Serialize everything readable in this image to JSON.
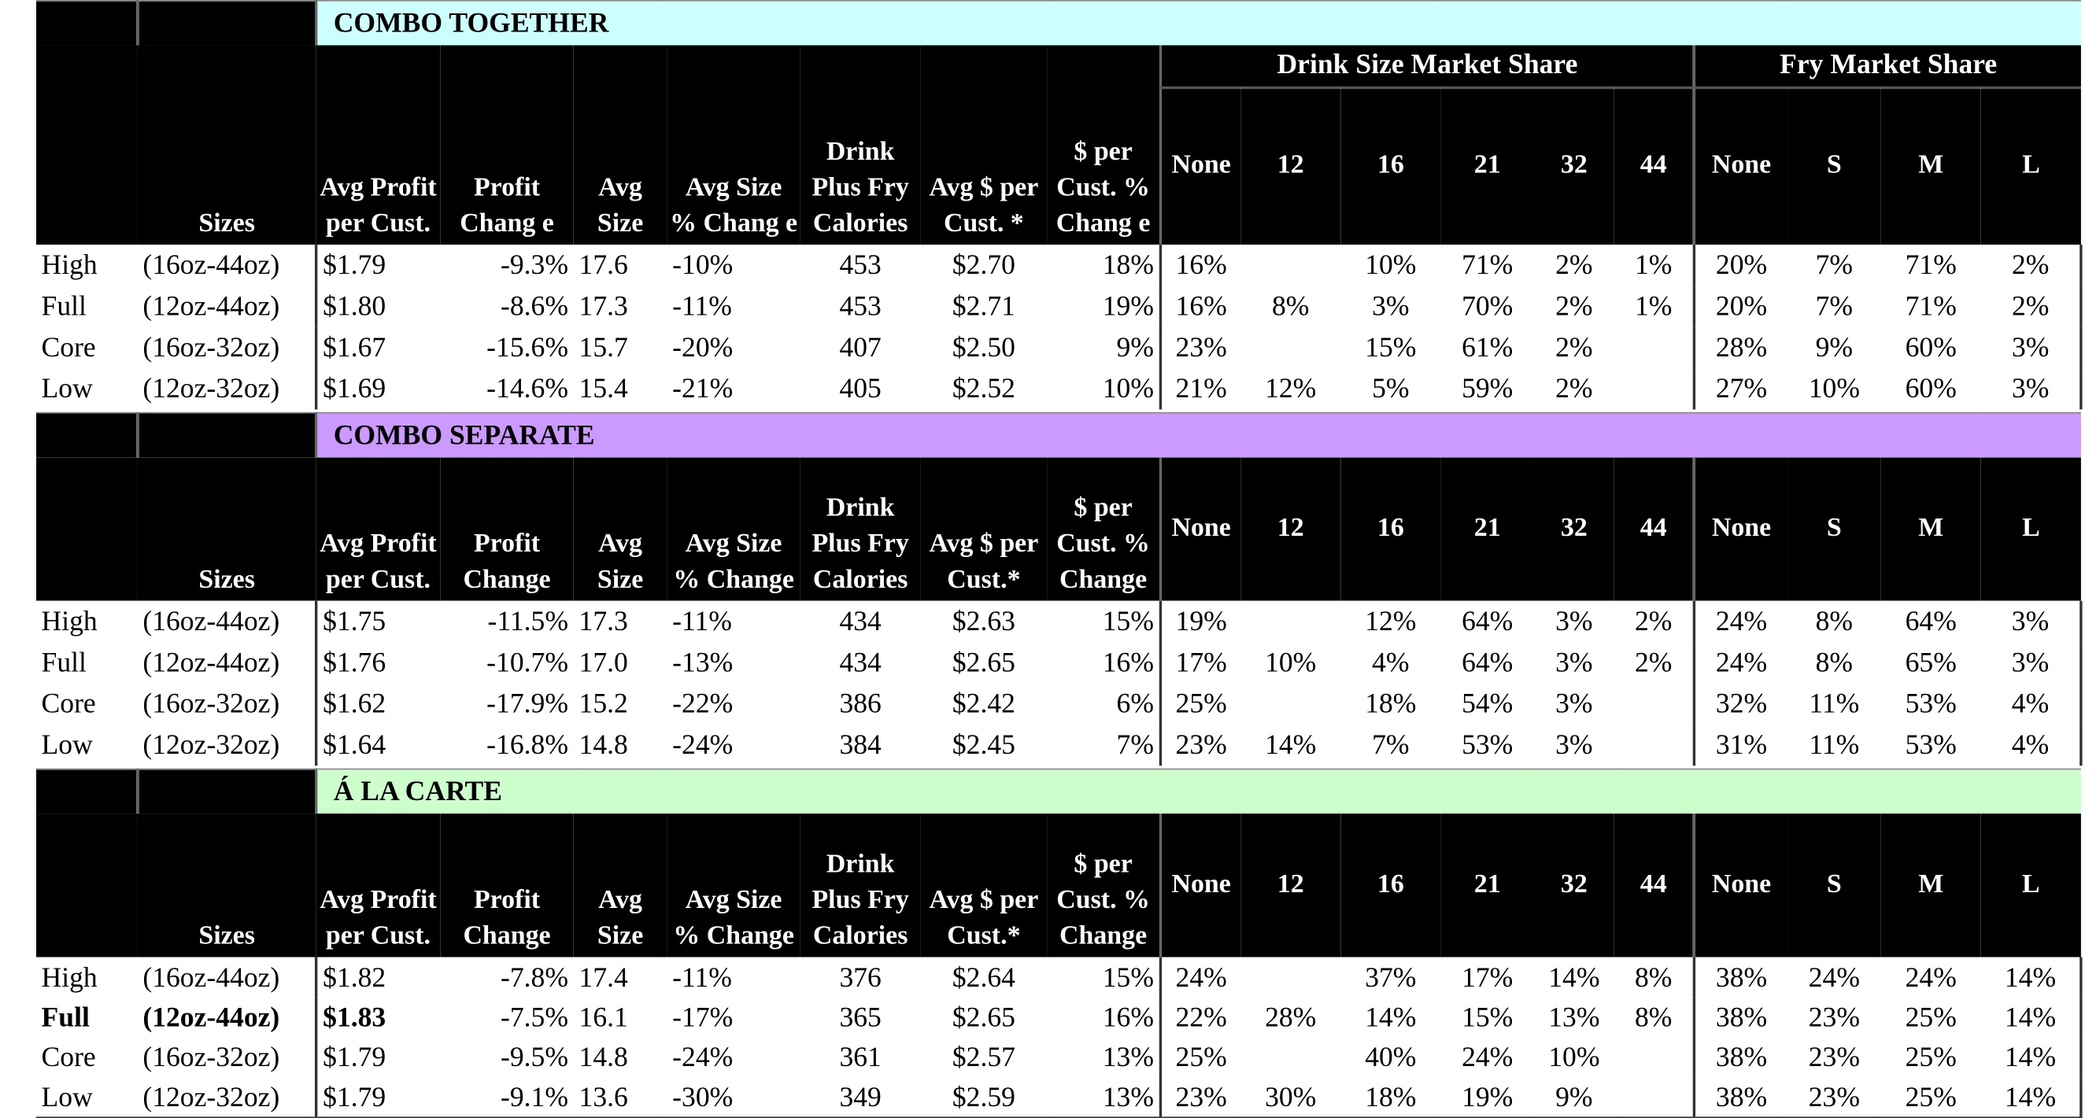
{
  "sections": [
    {
      "title": "COMBO TOGETHER",
      "color": "#ccffff",
      "header": {
        "sizes": "Sizes",
        "columns": [
          "Avg Profit per Cust.",
          "Profit Chang e",
          "Avg Size",
          "Avg Size % Chang e",
          "Drink Plus Fry Calories",
          "Avg $ per Cust. *",
          "$ per Cust. % Chang e"
        ],
        "drink_group": "Drink Size Market Share",
        "fry_group": "Fry Market Share",
        "drink_sizes": [
          "None",
          "12",
          "16",
          "21",
          "32",
          "44"
        ],
        "fry_sizes": [
          "None",
          "S",
          "M",
          "L"
        ]
      },
      "rows": [
        [
          "High",
          "(16oz-44oz)",
          "$1.79",
          "-9.3%",
          "17.6",
          "-10%",
          "453",
          "$2.70",
          "18%",
          "16%",
          null,
          "10%",
          "71%",
          "2%",
          "1%",
          "20%",
          "7%",
          "71%",
          "2%"
        ],
        [
          "Full",
          "(12oz-44oz)",
          "$1.80",
          "-8.6%",
          "17.3",
          "-11%",
          "453",
          "$2.71",
          "19%",
          "16%",
          "8%",
          "3%",
          "70%",
          "2%",
          "1%",
          "20%",
          "7%",
          "71%",
          "2%"
        ],
        [
          "Core",
          "(16oz-32oz)",
          "$1.67",
          "-15.6%",
          "15.7",
          "-20%",
          "407",
          "$2.50",
          "9%",
          "23%",
          null,
          "15%",
          "61%",
          "2%",
          null,
          "28%",
          "9%",
          "60%",
          "3%"
        ],
        [
          "Low",
          "(12oz-32oz)",
          "$1.69",
          "-14.6%",
          "15.4",
          "-21%",
          "405",
          "$2.52",
          "10%",
          "21%",
          "12%",
          "5%",
          "59%",
          "2%",
          null,
          "27%",
          "10%",
          "60%",
          "3%"
        ]
      ]
    },
    {
      "title": "COMBO SEPARATE",
      "color": "#cc99ff",
      "header": {
        "sizes": "Sizes",
        "columns": [
          "Avg Profit per Cust.",
          "Profit Change",
          "Avg Size",
          "Avg Size % Change",
          "Drink Plus Fry Calories",
          "Avg $ per Cust.*",
          "$ per Cust. % Change"
        ],
        "drink_sizes": [
          "None",
          "12",
          "16",
          "21",
          "32",
          "44"
        ],
        "fry_sizes": [
          "None",
          "S",
          "M",
          "L"
        ]
      },
      "rows": [
        [
          "High",
          "(16oz-44oz)",
          "$1.75",
          "-11.5%",
          "17.3",
          "-11%",
          "434",
          "$2.63",
          "15%",
          "19%",
          null,
          "12%",
          "64%",
          "3%",
          "2%",
          "24%",
          "8%",
          "64%",
          "3%"
        ],
        [
          "Full",
          "(12oz-44oz)",
          "$1.76",
          "-10.7%",
          "17.0",
          "-13%",
          "434",
          "$2.65",
          "16%",
          "17%",
          "10%",
          "4%",
          "64%",
          "3%",
          "2%",
          "24%",
          "8%",
          "65%",
          "3%"
        ],
        [
          "Core",
          "(16oz-32oz)",
          "$1.62",
          "-17.9%",
          "15.2",
          "-22%",
          "386",
          "$2.42",
          "6%",
          "25%",
          null,
          "18%",
          "54%",
          "3%",
          null,
          "32%",
          "11%",
          "53%",
          "4%"
        ],
        [
          "Low",
          "(12oz-32oz)",
          "$1.64",
          "-16.8%",
          "14.8",
          "-24%",
          "384",
          "$2.45",
          "7%",
          "23%",
          "14%",
          "7%",
          "53%",
          "3%",
          null,
          "31%",
          "11%",
          "53%",
          "4%"
        ]
      ]
    },
    {
      "title": "Á LA CARTE",
      "color": "#ccffcc",
      "header": {
        "sizes": "Sizes",
        "columns": [
          "Avg Profit per Cust.",
          "Profit Change",
          "Avg Size",
          "Avg Size % Change",
          "Drink Plus Fry Calories",
          "Avg $ per Cust.*",
          "$ per Cust. % Change"
        ],
        "drink_sizes": [
          "None",
          "12",
          "16",
          "21",
          "32",
          "44"
        ],
        "fry_sizes": [
          "None",
          "S",
          "M",
          "L"
        ]
      },
      "rows": [
        [
          "High",
          "(16oz-44oz)",
          "$1.82",
          "-7.8%",
          "17.4",
          "-11%",
          "376",
          "$2.64",
          "15%",
          "24%",
          null,
          "37%",
          "17%",
          "14%",
          "8%",
          "38%",
          "24%",
          "24%",
          "14%"
        ],
        [
          "Full",
          "(12oz-44oz)",
          "$1.83",
          "-7.5%",
          "16.1",
          "-17%",
          "365",
          "$2.65",
          "16%",
          "22%",
          "28%",
          "14%",
          "15%",
          "13%",
          "8%",
          "38%",
          "23%",
          "25%",
          "14%"
        ],
        [
          "Core",
          "(16oz-32oz)",
          "$1.79",
          "-9.5%",
          "14.8",
          "-24%",
          "361",
          "$2.57",
          "13%",
          "25%",
          null,
          "40%",
          "24%",
          "10%",
          null,
          "38%",
          "23%",
          "25%",
          "14%"
        ],
        [
          "Low",
          "(12oz-32oz)",
          "$1.79",
          "-9.1%",
          "13.6",
          "-30%",
          "349",
          "$2.59",
          "13%",
          "23%",
          "30%",
          "18%",
          "19%",
          "9%",
          null,
          "38%",
          "23%",
          "25%",
          "14%"
        ]
      ]
    }
  ]
}
